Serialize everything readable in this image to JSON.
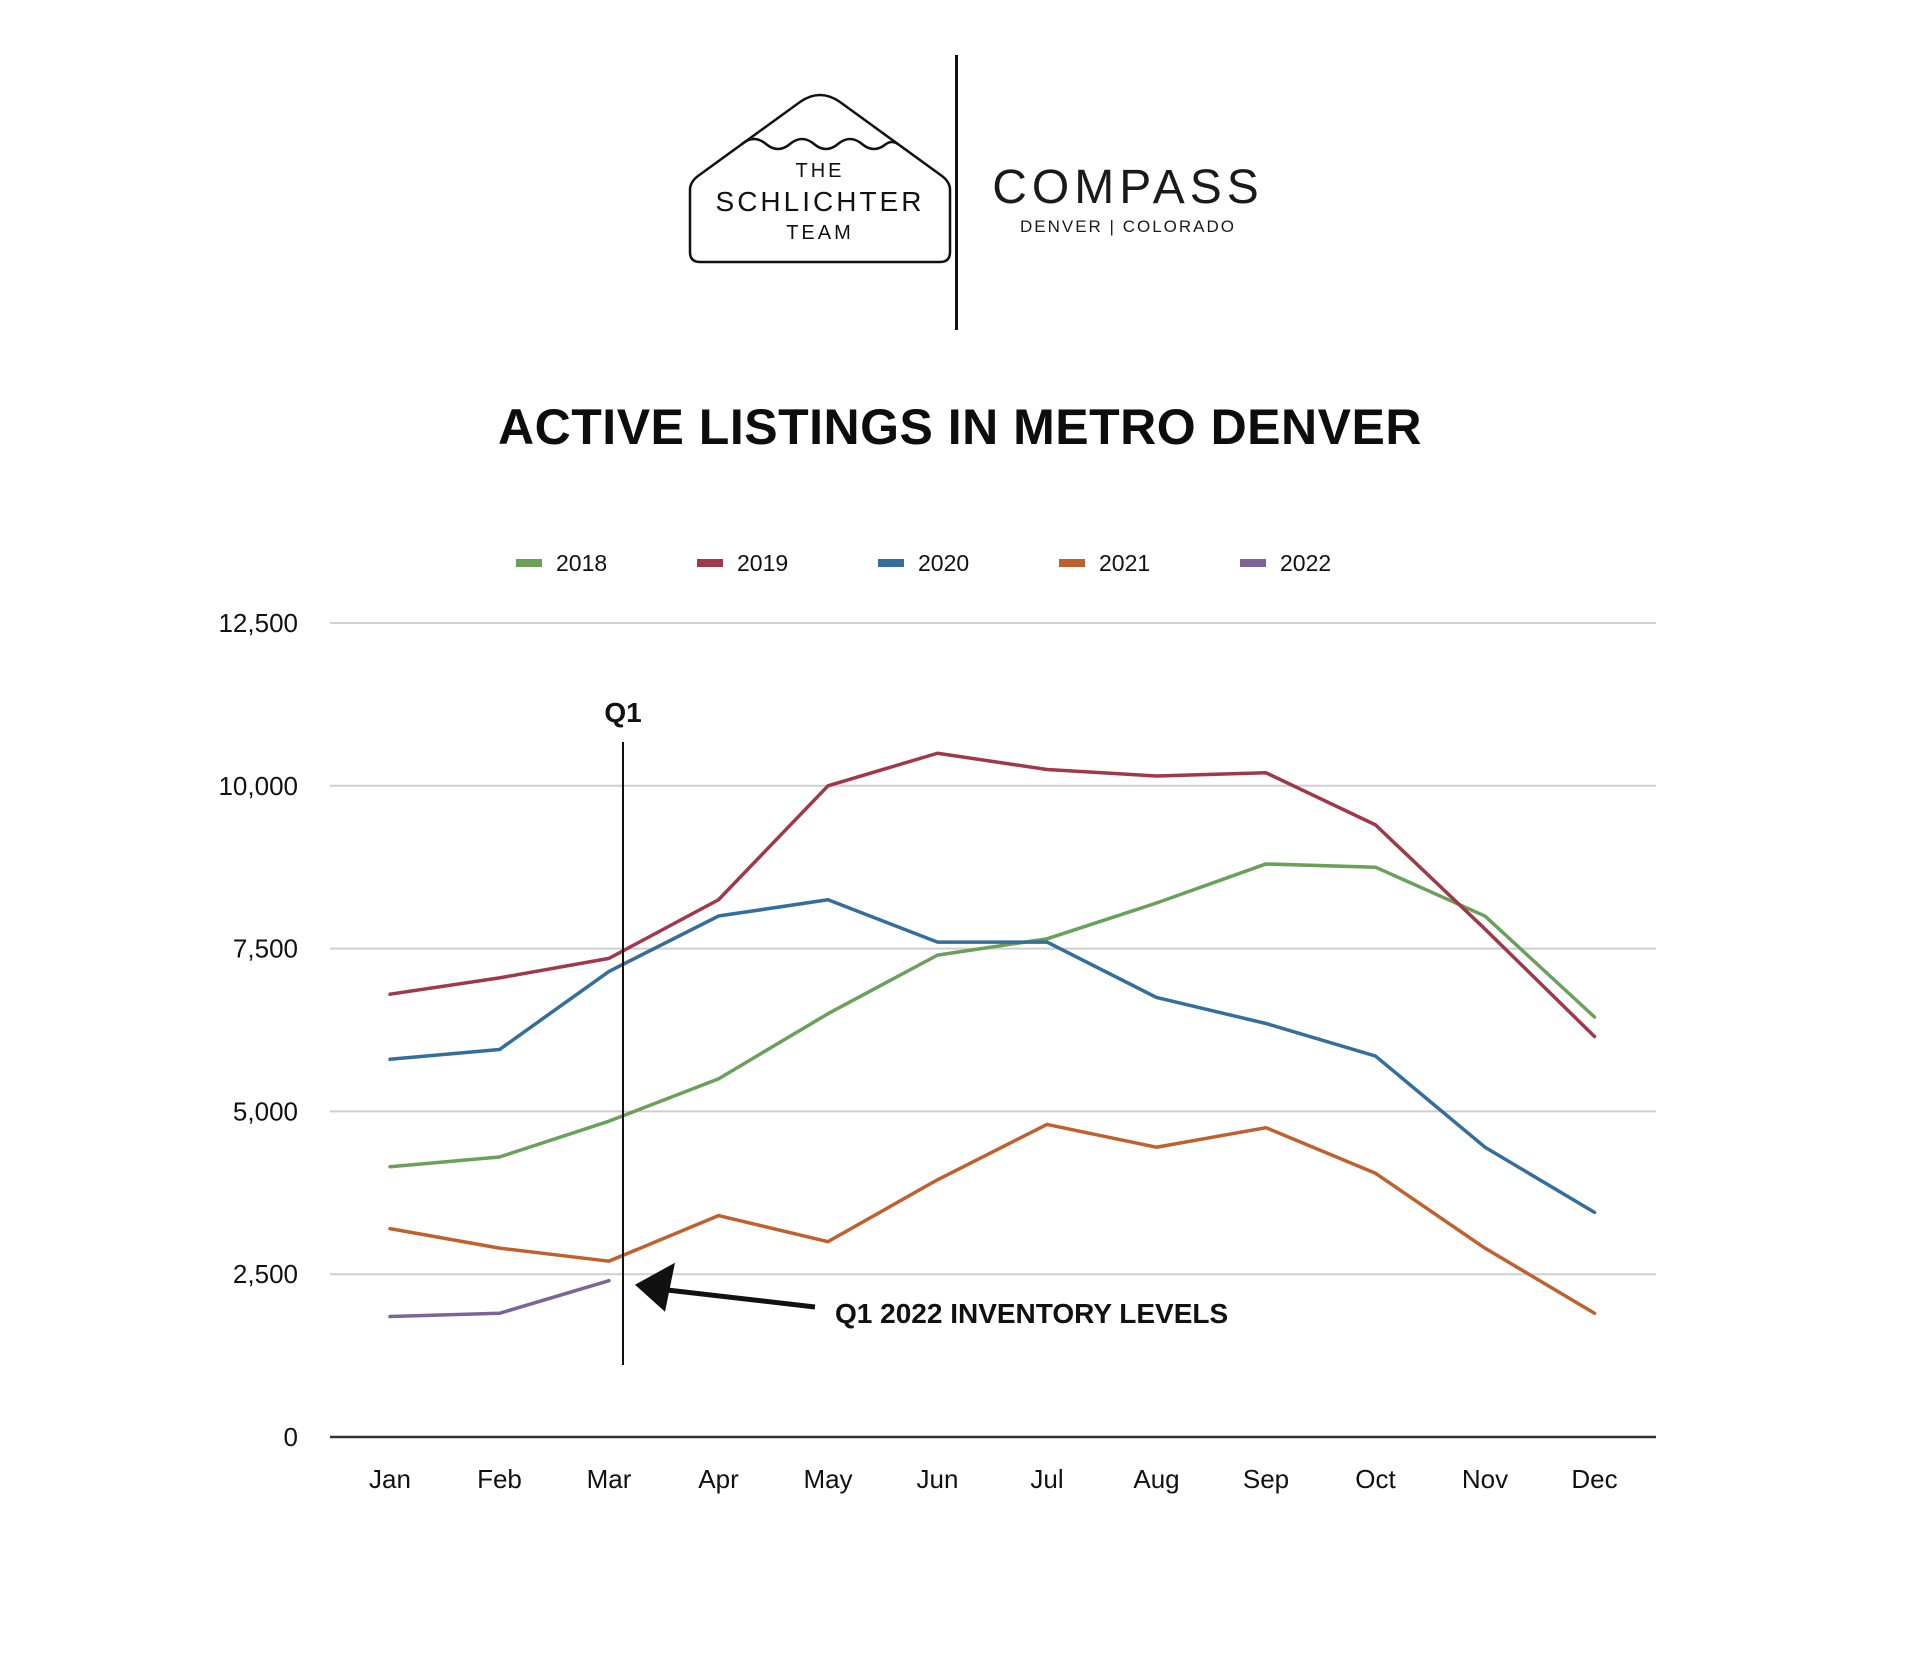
{
  "header": {
    "team_logo": {
      "line1": "THE",
      "line2": "SCHLICHTER",
      "line3": "TEAM"
    },
    "compass_logo": {
      "name": "COMPASS",
      "subtitle": "DENVER | COLORADO"
    }
  },
  "chart_data": {
    "type": "line",
    "title": "ACTIVE LISTINGS IN METRO DENVER",
    "xlabel": "",
    "ylabel": "",
    "categories": [
      "Jan",
      "Feb",
      "Mar",
      "Apr",
      "May",
      "Jun",
      "Jul",
      "Aug",
      "Sep",
      "Oct",
      "Nov",
      "Dec"
    ],
    "ylim": [
      0,
      12500
    ],
    "yticks": [
      0,
      2500,
      5000,
      7500,
      10000,
      12500
    ],
    "ytick_labels": [
      "0",
      "2,500",
      "5,000",
      "7,500",
      "10,000",
      "12,500"
    ],
    "grid": true,
    "legend_position": "top",
    "series": [
      {
        "name": "2018",
        "color": "#6aa05a",
        "values": [
          4150,
          4300,
          4850,
          5500,
          6500,
          7400,
          7650,
          8200,
          8800,
          8750,
          8000,
          6450
        ]
      },
      {
        "name": "2019",
        "color": "#a0384a",
        "values": [
          6800,
          7050,
          7350,
          8250,
          10000,
          10500,
          10250,
          10150,
          10200,
          9400,
          7800,
          6150
        ]
      },
      {
        "name": "2020",
        "color": "#336e9c",
        "values": [
          5800,
          5950,
          7150,
          8000,
          8250,
          7600,
          7600,
          6750,
          6350,
          5850,
          4450,
          3450
        ]
      },
      {
        "name": "2021",
        "color": "#c0602e",
        "values": [
          3200,
          2900,
          2700,
          3400,
          3000,
          3950,
          4800,
          4450,
          4750,
          4050,
          2900,
          1900
        ]
      },
      {
        "name": "2022",
        "color": "#7d6497",
        "values": [
          1850,
          1900,
          2400,
          null,
          null,
          null,
          null,
          null,
          null,
          null,
          null,
          null
        ]
      }
    ],
    "annotations": [
      {
        "type": "vertical-line",
        "at": "Mar",
        "label": "Q1"
      },
      {
        "type": "arrow",
        "target_series": "2022",
        "target_at": "Mar",
        "label": "Q1 2022 INVENTORY LEVELS"
      }
    ]
  }
}
